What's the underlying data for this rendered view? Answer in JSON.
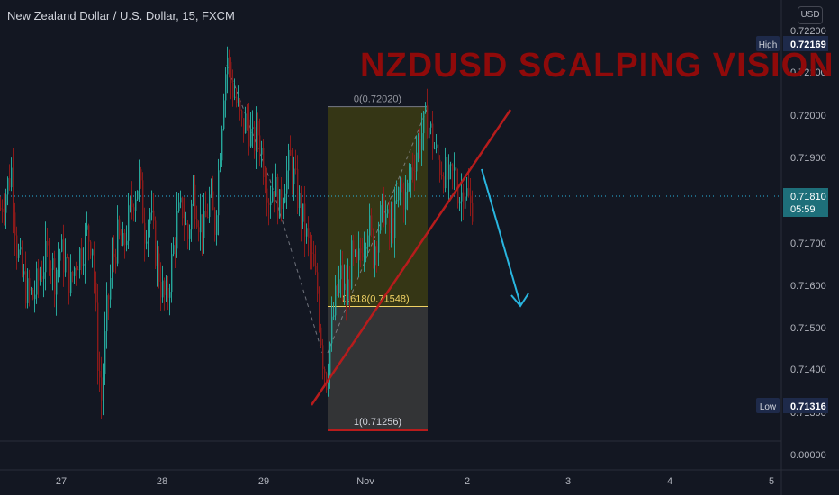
{
  "header": {
    "symbol_title": "New Zealand Dollar / U.S. Dollar, 15, FXCM",
    "currency_button": "USD"
  },
  "annotation": {
    "headline": "NZDUSD SCALPING VISION"
  },
  "colors": {
    "background": "#131722",
    "bull_candle": "#26a69a",
    "bear_candle": "#8b1a1a",
    "trendline": "#b71c1c",
    "arrow": "#29b6e0",
    "fib_upper_fill": "#3a3a14",
    "fib_lower_fill": "#3a3a3a",
    "current_price_tag": "#1e6f7a",
    "hilo_tag": "#1e2a4a"
  },
  "chart_data": {
    "type": "candlestick",
    "price_axis_ticks": [
      "0.72200",
      "0.72100",
      "0.72000",
      "0.71900",
      "0.71700",
      "0.71600",
      "0.71500",
      "0.71400",
      "0.00000"
    ],
    "time_axis_ticks": [
      "27",
      "28",
      "29",
      "Nov",
      "2",
      "3",
      "4",
      "5"
    ],
    "ylim": [
      0.7128,
      0.7222
    ],
    "high": {
      "label": "High",
      "value": "0.72169"
    },
    "low": {
      "label": "Low",
      "value": "0.71316"
    },
    "current_price": {
      "value": "0.71810",
      "countdown": "05:59"
    },
    "fibonacci": {
      "levels": [
        {
          "label": "0(0.72020)",
          "ratio": 0,
          "price": 0.7202
        },
        {
          "label": "0.618(0.71548)",
          "ratio": 0.618,
          "price": 0.71548
        },
        {
          "label": "1(0.71256)",
          "ratio": 1,
          "price": 0.71256
        }
      ]
    },
    "price_path": [
      [
        0,
        0.7178
      ],
      [
        6,
        0.7182
      ],
      [
        12,
        0.7187
      ],
      [
        18,
        0.7169
      ],
      [
        24,
        0.7162
      ],
      [
        30,
        0.7158
      ],
      [
        36,
        0.7157
      ],
      [
        42,
        0.7161
      ],
      [
        48,
        0.7165
      ],
      [
        54,
        0.7168
      ],
      [
        60,
        0.7162
      ],
      [
        66,
        0.7168
      ],
      [
        72,
        0.7165
      ],
      [
        78,
        0.716
      ],
      [
        84,
        0.7166
      ],
      [
        90,
        0.7168
      ],
      [
        96,
        0.7172
      ],
      [
        102,
        0.717
      ],
      [
        108,
        0.7143
      ],
      [
        112,
        0.7133
      ],
      [
        118,
        0.7153
      ],
      [
        124,
        0.7165
      ],
      [
        130,
        0.7171
      ],
      [
        136,
        0.7168
      ],
      [
        142,
        0.7175
      ],
      [
        148,
        0.7181
      ],
      [
        154,
        0.7185
      ],
      [
        160,
        0.7173
      ],
      [
        166,
        0.7177
      ],
      [
        172,
        0.7168
      ],
      [
        178,
        0.716
      ],
      [
        184,
        0.7155
      ],
      [
        190,
        0.7165
      ],
      [
        196,
        0.7175
      ],
      [
        202,
        0.7178
      ],
      [
        208,
        0.7171
      ],
      [
        214,
        0.7182
      ],
      [
        220,
        0.7176
      ],
      [
        226,
        0.7173
      ],
      [
        232,
        0.718
      ],
      [
        238,
        0.7174
      ],
      [
        244,
        0.7193
      ],
      [
        248,
        0.7207
      ],
      [
        252,
        0.7214
      ],
      [
        256,
        0.7208
      ],
      [
        262,
        0.7203
      ],
      [
        268,
        0.7197
      ],
      [
        274,
        0.7199
      ],
      [
        280,
        0.7193
      ],
      [
        286,
        0.7196
      ],
      [
        292,
        0.7189
      ],
      [
        298,
        0.7181
      ],
      [
        304,
        0.7184
      ],
      [
        310,
        0.7178
      ],
      [
        316,
        0.7185
      ],
      [
        322,
        0.7189
      ],
      [
        328,
        0.7183
      ],
      [
        334,
        0.7177
      ],
      [
        340,
        0.7171
      ],
      [
        346,
        0.7165
      ],
      [
        352,
        0.7158
      ],
      [
        358,
        0.7143
      ],
      [
        362,
        0.7138
      ],
      [
        366,
        0.7146
      ],
      [
        372,
        0.7156
      ],
      [
        378,
        0.7162
      ],
      [
        384,
        0.7156
      ],
      [
        390,
        0.7166
      ],
      [
        396,
        0.7163
      ],
      [
        402,
        0.717
      ],
      [
        408,
        0.7175
      ],
      [
        414,
        0.7168
      ],
      [
        420,
        0.7174
      ],
      [
        426,
        0.7178
      ],
      [
        432,
        0.7172
      ],
      [
        438,
        0.7176
      ],
      [
        444,
        0.7183
      ],
      [
        450,
        0.718
      ],
      [
        456,
        0.7187
      ],
      [
        462,
        0.7192
      ],
      [
        468,
        0.7196
      ],
      [
        474,
        0.7199
      ],
      [
        480,
        0.7194
      ],
      [
        486,
        0.7189
      ],
      [
        492,
        0.7187
      ],
      [
        498,
        0.7184
      ],
      [
        504,
        0.7186
      ],
      [
        510,
        0.7181
      ],
      [
        516,
        0.7183
      ],
      [
        522,
        0.7178
      ],
      [
        526,
        0.718
      ]
    ]
  }
}
